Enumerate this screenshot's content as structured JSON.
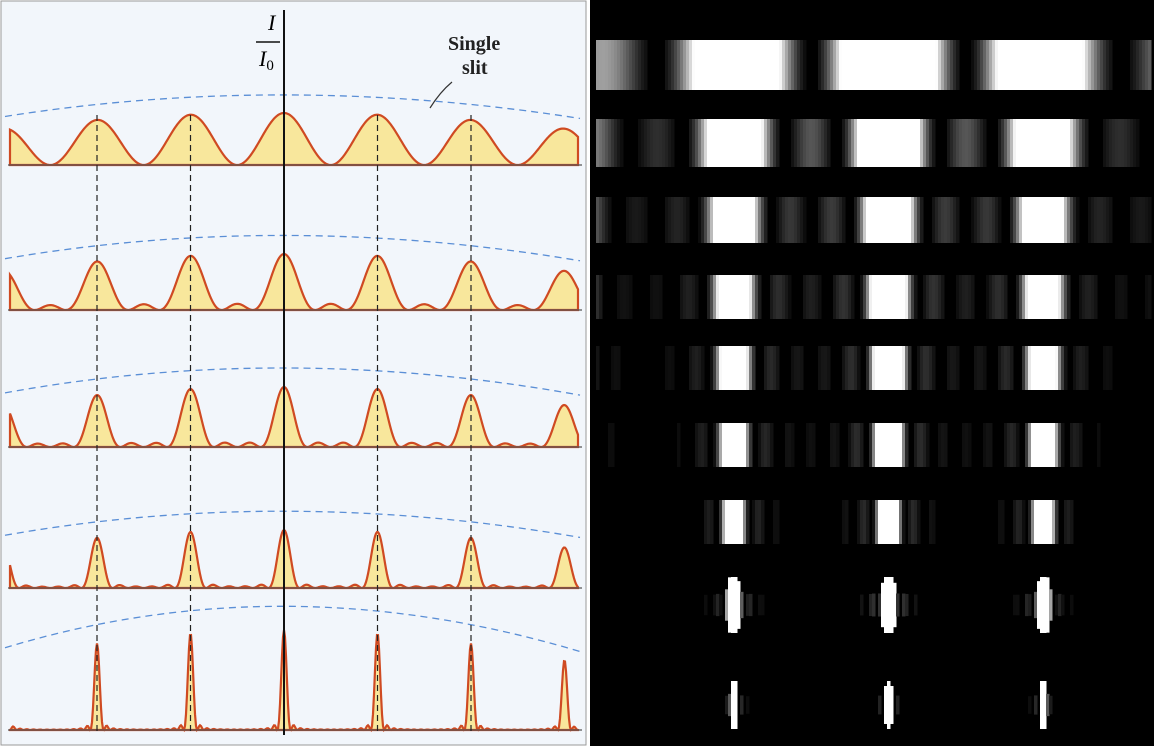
{
  "axis_label": {
    "numerator": "I",
    "denominator": "I",
    "denominator_subscript": "0"
  },
  "envelope_label": {
    "line1": "Single",
    "line2": "slit"
  }
}
